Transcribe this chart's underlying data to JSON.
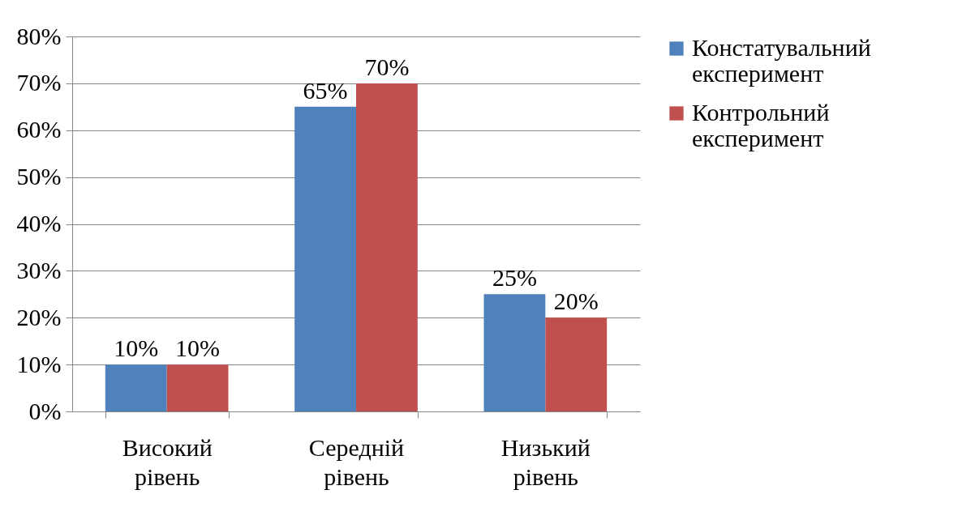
{
  "chart_data": {
    "type": "bar",
    "categories": [
      "Високий рівень",
      "Середній рівень",
      "Низький рівень"
    ],
    "series": [
      {
        "name": "Констатувальний експеримент",
        "color": "#4f81bd",
        "values": [
          10,
          65,
          25
        ],
        "value_labels": [
          "10%",
          "65%",
          "25%"
        ]
      },
      {
        "name": "Контрольний експеримент",
        "color": "#c0504d",
        "values": [
          10,
          70,
          20
        ],
        "value_labels": [
          "10%",
          "70%",
          "20%"
        ]
      }
    ],
    "ylim": [
      0,
      80
    ],
    "yticks": [
      {
        "value": 0,
        "label": "0%"
      },
      {
        "value": 10,
        "label": "10%"
      },
      {
        "value": 20,
        "label": "20%"
      },
      {
        "value": 30,
        "label": "30%"
      },
      {
        "value": 40,
        "label": "40%"
      },
      {
        "value": 50,
        "label": "50%"
      },
      {
        "value": 60,
        "label": "60%"
      },
      {
        "value": 70,
        "label": "70%"
      },
      {
        "value": 80,
        "label": "80%"
      }
    ],
    "grid": "y",
    "legend": "right"
  }
}
